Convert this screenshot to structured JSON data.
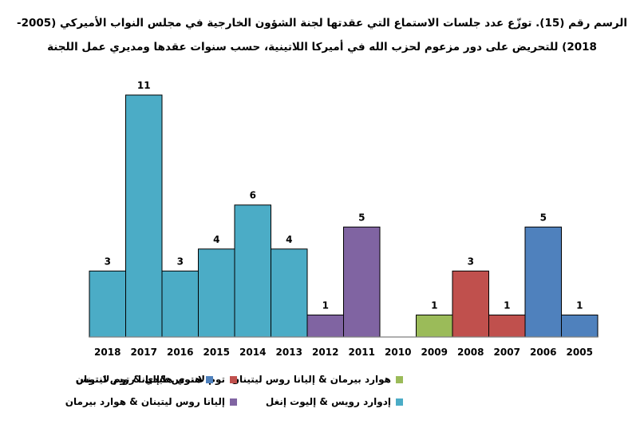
{
  "chart_data": {
    "type": "bar",
    "title": "الرسم رقم (15). توزّع عدد جلسات الاستماع التي عقدتها لجنة الشؤون الخارجية في مجلس النواب الأميركي (2005-2018) للتحريض على دور مزعوم لحزب الله في أميركا اللاتينية، حسب سنوات عقدها ومديري عمل اللجنة",
    "categories": [
      "2018",
      "2017",
      "2016",
      "2015",
      "2014",
      "2013",
      "2012",
      "2011",
      "2010",
      "2009",
      "2008",
      "2007",
      "2006",
      "2005"
    ],
    "values": [
      3,
      11,
      3,
      4,
      6,
      4,
      1,
      5,
      0,
      1,
      3,
      1,
      5,
      1
    ],
    "data_labels": [
      "3",
      "11",
      "3",
      "4",
      "6",
      "4",
      "1",
      "5",
      "",
      "1",
      "3",
      "1",
      "5",
      "1"
    ],
    "bar_groups": [
      0,
      0,
      0,
      0,
      0,
      0,
      1,
      1,
      null,
      2,
      3,
      3,
      4,
      4
    ],
    "ylim": [
      0,
      11
    ],
    "grid": false,
    "legend_position": "bottom",
    "series": [
      {
        "name": "إدوارد رويس & إليوت إنغل",
        "color": "#4BACC6"
      },
      {
        "name": "إليانا روس ليتينان & هوارد بيرمان",
        "color": "#8064A2"
      },
      {
        "name": "هوارد بيرمان & إليانا روس ليتينان",
        "color": "#9BBB59"
      },
      {
        "name": "توم لانتوس &إليانا روس ليتينان",
        "color": "#C0504D"
      },
      {
        "name": "هنري هايدي & توم لانتوس",
        "color": "#4F81BD"
      }
    ]
  }
}
